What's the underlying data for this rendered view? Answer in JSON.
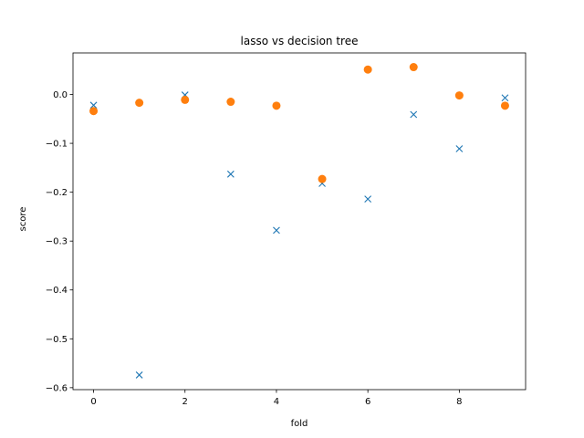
{
  "chart_data": {
    "type": "scatter",
    "title": "lasso vs decision tree",
    "xlabel": "fold",
    "ylabel": "score",
    "xlim": [
      -0.45,
      9.45
    ],
    "ylim": [
      -0.604,
      0.085
    ],
    "xticks": [
      0,
      2,
      4,
      6,
      8
    ],
    "yticks": [
      0.0,
      -0.1,
      -0.2,
      -0.3,
      -0.4,
      -0.5,
      -0.6
    ],
    "xtick_labels": [
      "0",
      "2",
      "4",
      "6",
      "8"
    ],
    "ytick_labels": [
      "0.0",
      "−0.1",
      "−0.2",
      "−0.3",
      "−0.4",
      "−0.5",
      "−0.6"
    ],
    "grid": false,
    "series": [
      {
        "marker": "x",
        "color": "#1f77b4",
        "x": [
          0,
          1,
          2,
          3,
          4,
          5,
          6,
          7,
          8,
          9
        ],
        "y": [
          -0.022,
          -0.574,
          -0.001,
          -0.163,
          -0.278,
          -0.182,
          -0.214,
          -0.041,
          -0.111,
          -0.007
        ]
      },
      {
        "marker": "o",
        "color": "#ff7f0e",
        "x": [
          0,
          1,
          2,
          3,
          4,
          5,
          6,
          7,
          8,
          9
        ],
        "y": [
          -0.034,
          -0.017,
          -0.011,
          -0.015,
          -0.023,
          -0.173,
          0.051,
          0.056,
          -0.002,
          -0.023
        ]
      }
    ]
  }
}
